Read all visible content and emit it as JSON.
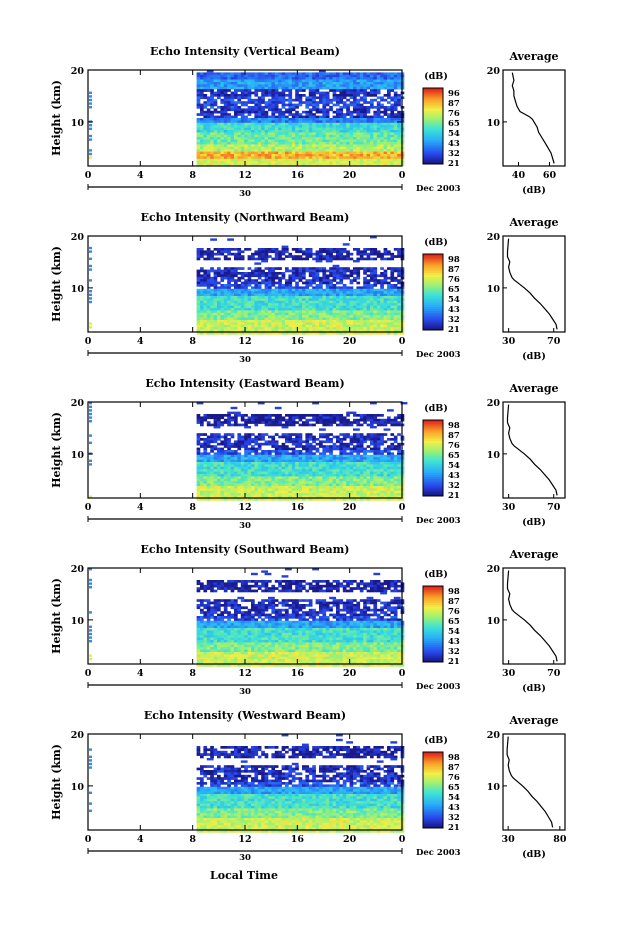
{
  "figure": {
    "x_axis_title": "Local Time",
    "date_label": "Dec 2003",
    "day_label": "30"
  },
  "chart_data": [
    {
      "type": "heatmap",
      "title": "Echo Intensity (Vertical Beam)",
      "ylabel": "Height (km)",
      "xticks": [
        "0",
        "4",
        "8",
        "12",
        "16",
        "20",
        "0"
      ],
      "xlim": [
        0,
        24
      ],
      "yticks": [
        "20",
        "10"
      ],
      "ylim": [
        1.5,
        20
      ],
      "colorbar": {
        "unit": "(dB)",
        "ticks": [
          "96",
          "87",
          "76",
          "65",
          "54",
          "43",
          "32",
          "21"
        ]
      },
      "data_start_hour": 8.3,
      "layers": [
        {
          "from": 1.5,
          "to": 3.0,
          "level": 0.68
        },
        {
          "from": 3.0,
          "to": 4.5,
          "level": 0.82
        },
        {
          "from": 4.5,
          "to": 6.0,
          "level": 0.62
        },
        {
          "from": 6.0,
          "to": 8.0,
          "level": 0.52
        },
        {
          "from": 8.0,
          "to": 10.0,
          "level": 0.44
        },
        {
          "from": 10.0,
          "to": 11.0,
          "level": 0.22
        },
        {
          "from": 11.0,
          "to": 12.0,
          "level": 0.08
        },
        {
          "from": 12.0,
          "to": 13.0,
          "level": 0.04
        },
        {
          "from": 13.0,
          "to": 15.0,
          "level": 0.12
        },
        {
          "from": 15.0,
          "to": 16.5,
          "level": 0.05
        },
        {
          "from": 16.5,
          "to": 18.5,
          "level": 0.28
        },
        {
          "from": 18.5,
          "to": 20.0,
          "level": 0.18
        }
      ],
      "profile": {
        "title": "Average",
        "xticks": [
          "40",
          "60"
        ],
        "xlim": [
          30,
          70
        ],
        "yticks": [
          "20",
          "10"
        ],
        "xlabel": "(dB)",
        "x": [
          63,
          62,
          61,
          59,
          57,
          55,
          53,
          52,
          50,
          49,
          47,
          44,
          41,
          39,
          38,
          37,
          37,
          36,
          37,
          36
        ],
        "y": [
          2,
          3,
          4,
          5,
          6,
          7,
          8,
          9,
          10,
          10.5,
          11,
          11.5,
          12,
          13,
          14,
          15,
          16,
          17,
          18,
          19.5
        ]
      }
    },
    {
      "type": "heatmap",
      "title": "Echo Intensity (Northward Beam)",
      "ylabel": "Height (km)",
      "xticks": [
        "0",
        "4",
        "8",
        "12",
        "16",
        "20",
        "0"
      ],
      "xlim": [
        0,
        24
      ],
      "yticks": [
        "20",
        "10"
      ],
      "ylim": [
        1.5,
        20
      ],
      "colorbar": {
        "unit": "(dB)",
        "ticks": [
          "98",
          "87",
          "76",
          "65",
          "54",
          "43",
          "32",
          "21"
        ]
      },
      "data_start_hour": 8.3,
      "layers": [
        {
          "from": 1.5,
          "to": 4.0,
          "level": 0.66
        },
        {
          "from": 4.0,
          "to": 6.0,
          "level": 0.55
        },
        {
          "from": 6.0,
          "to": 8.5,
          "level": 0.45
        },
        {
          "from": 8.5,
          "to": 10.0,
          "level": 0.3
        },
        {
          "from": 10.0,
          "to": 11.0,
          "level": 0.12
        },
        {
          "from": 11.0,
          "to": 14.0,
          "level": 0.06
        },
        {
          "from": 15.5,
          "to": 18.0,
          "level": 0.03
        }
      ],
      "profile": {
        "title": "Average",
        "xticks": [
          "30",
          "70"
        ],
        "xlim": [
          25,
          80
        ],
        "yticks": [
          "20",
          "10"
        ],
        "xlabel": "(dB)",
        "x": [
          73,
          72,
          69,
          66,
          62,
          58,
          53,
          49,
          44,
          41,
          38,
          35,
          33,
          31,
          30,
          31,
          29,
          29,
          30
        ],
        "y": [
          2,
          3,
          4,
          5,
          6,
          7,
          8,
          9,
          10,
          10.5,
          11,
          11.5,
          12,
          13,
          14,
          15,
          16,
          17,
          19.5
        ]
      }
    },
    {
      "type": "heatmap",
      "title": "Echo Intensity (Eastward Beam)",
      "ylabel": "Height (km)",
      "xticks": [
        "0",
        "4",
        "8",
        "12",
        "16",
        "20",
        "0"
      ],
      "xlim": [
        0,
        24
      ],
      "yticks": [
        "20",
        "10"
      ],
      "ylim": [
        1.5,
        20
      ],
      "colorbar": {
        "unit": "(dB)",
        "ticks": [
          "98",
          "87",
          "76",
          "65",
          "54",
          "43",
          "32",
          "21"
        ]
      },
      "data_start_hour": 8.3,
      "layers": [
        {
          "from": 1.5,
          "to": 4.0,
          "level": 0.66
        },
        {
          "from": 4.0,
          "to": 6.0,
          "level": 0.55
        },
        {
          "from": 6.0,
          "to": 8.5,
          "level": 0.45
        },
        {
          "from": 8.5,
          "to": 10.0,
          "level": 0.3
        },
        {
          "from": 10.0,
          "to": 11.0,
          "level": 0.12
        },
        {
          "from": 11.0,
          "to": 14.0,
          "level": 0.06
        },
        {
          "from": 15.5,
          "to": 18.0,
          "level": 0.03
        }
      ],
      "profile": {
        "title": "Average",
        "xticks": [
          "30",
          "70"
        ],
        "xlim": [
          25,
          80
        ],
        "yticks": [
          "20",
          "10"
        ],
        "xlabel": "(dB)",
        "x": [
          73,
          72,
          69,
          66,
          62,
          58,
          53,
          49,
          44,
          41,
          38,
          35,
          33,
          31,
          30,
          31,
          29,
          29,
          30
        ],
        "y": [
          2,
          3,
          4,
          5,
          6,
          7,
          8,
          9,
          10,
          10.5,
          11,
          11.5,
          12,
          13,
          14,
          15,
          16,
          17,
          19.5
        ]
      }
    },
    {
      "type": "heatmap",
      "title": "Echo Intensity (Southward Beam)",
      "ylabel": "Height (km)",
      "xticks": [
        "0",
        "4",
        "8",
        "12",
        "16",
        "20",
        "0"
      ],
      "xlim": [
        0,
        24
      ],
      "yticks": [
        "20",
        "10"
      ],
      "ylim": [
        1.5,
        20
      ],
      "colorbar": {
        "unit": "(dB)",
        "ticks": [
          "98",
          "87",
          "76",
          "65",
          "54",
          "43",
          "32",
          "21"
        ]
      },
      "data_start_hour": 8.3,
      "layers": [
        {
          "from": 1.5,
          "to": 4.0,
          "level": 0.66
        },
        {
          "from": 4.0,
          "to": 6.0,
          "level": 0.55
        },
        {
          "from": 6.0,
          "to": 8.5,
          "level": 0.45
        },
        {
          "from": 8.5,
          "to": 10.0,
          "level": 0.3
        },
        {
          "from": 10.0,
          "to": 11.0,
          "level": 0.12
        },
        {
          "from": 11.0,
          "to": 14.0,
          "level": 0.06
        },
        {
          "from": 15.5,
          "to": 18.0,
          "level": 0.03
        }
      ],
      "profile": {
        "title": "Average",
        "xticks": [
          "30",
          "70"
        ],
        "xlim": [
          25,
          80
        ],
        "yticks": [
          "20",
          "10"
        ],
        "xlabel": "(dB)",
        "x": [
          73,
          72,
          69,
          66,
          62,
          58,
          53,
          49,
          44,
          41,
          38,
          35,
          33,
          31,
          30,
          31,
          29,
          29,
          30
        ],
        "y": [
          2,
          3,
          4,
          5,
          6,
          7,
          8,
          9,
          10,
          10.5,
          11,
          11.5,
          12,
          13,
          14,
          15,
          16,
          17,
          19.5
        ]
      }
    },
    {
      "type": "heatmap",
      "title": "Echo Intensity (Westward Beam)",
      "ylabel": "Height (km)",
      "xticks": [
        "0",
        "4",
        "8",
        "12",
        "16",
        "20",
        "0"
      ],
      "xlim": [
        0,
        24
      ],
      "yticks": [
        "20",
        "10"
      ],
      "ylim": [
        1.5,
        20
      ],
      "colorbar": {
        "unit": "(dB)",
        "ticks": [
          "98",
          "87",
          "76",
          "65",
          "54",
          "43",
          "32",
          "21"
        ]
      },
      "data_start_hour": 8.3,
      "layers": [
        {
          "from": 1.5,
          "to": 4.0,
          "level": 0.66
        },
        {
          "from": 4.0,
          "to": 6.0,
          "level": 0.55
        },
        {
          "from": 6.0,
          "to": 8.5,
          "level": 0.45
        },
        {
          "from": 8.5,
          "to": 10.0,
          "level": 0.3
        },
        {
          "from": 10.0,
          "to": 11.0,
          "level": 0.12
        },
        {
          "from": 11.0,
          "to": 14.0,
          "level": 0.06
        },
        {
          "from": 15.5,
          "to": 18.0,
          "level": 0.03
        }
      ],
      "profile": {
        "title": "Average",
        "xticks": [
          "30",
          "80"
        ],
        "xlim": [
          25,
          85
        ],
        "yticks": [
          "20",
          "10"
        ],
        "xlabel": "(dB)",
        "x": [
          73,
          72,
          69,
          66,
          62,
          58,
          53,
          49,
          44,
          41,
          38,
          35,
          33,
          31,
          30,
          31,
          29,
          29,
          30
        ],
        "y": [
          2,
          3,
          4,
          5,
          6,
          7,
          8,
          9,
          10,
          10.5,
          11,
          11.5,
          12,
          13,
          14,
          15,
          16,
          17,
          19.5
        ]
      }
    }
  ]
}
